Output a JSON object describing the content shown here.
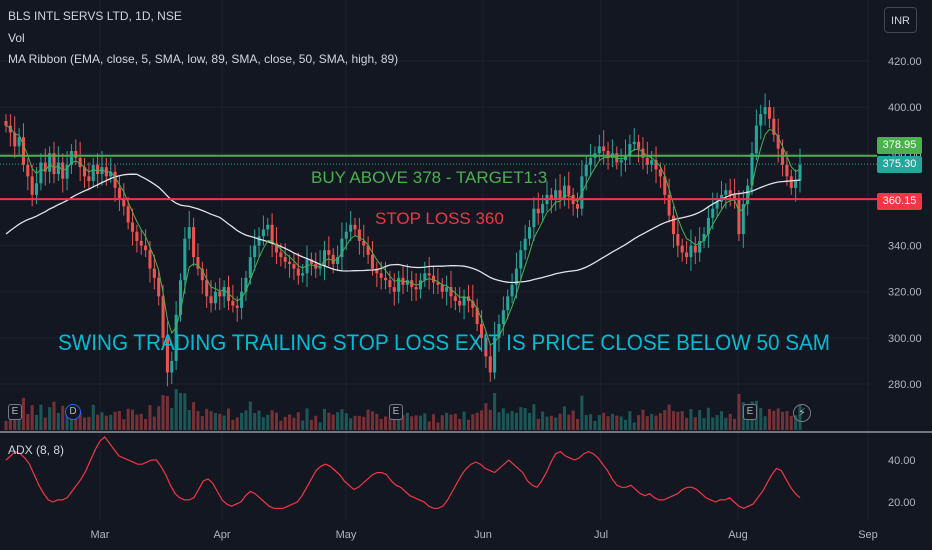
{
  "header": {
    "symbol": "BLS INTL SERVS LTD, 1D, NSE",
    "vol": "Vol",
    "ma_ribbon": "MA Ribbon (EMA, close, 5, SMA, low, 89, SMA, close, 50, SMA, high, 89)",
    "currency": "INR"
  },
  "events": {
    "e1": "E",
    "d1": "D",
    "e2": "E",
    "e3": "E"
  },
  "chart_data": {
    "type": "candlestick",
    "price_axis": {
      "ticks": [
        "420.00",
        "400.00",
        "380.00",
        "360.00",
        "340.00",
        "320.00",
        "300.00",
        "280.00"
      ],
      "range": [
        265,
        432
      ]
    },
    "x_labels": [
      "Mar",
      "Apr",
      "May",
      "Jun",
      "Jul",
      "Aug",
      "Sep"
    ],
    "price_tags": [
      {
        "text": "378.95",
        "color": "#4caf50"
      },
      {
        "text": "375.30",
        "color": "#26a69a"
      },
      {
        "text": "360.15",
        "color": "#f23645"
      }
    ],
    "horizontal_lines": [
      {
        "value": 378.95,
        "color": "#4caf50"
      },
      {
        "value": 360.15,
        "color": "#f23645"
      }
    ],
    "annotations": [
      {
        "text": "BUY ABOVE 378 - TARGET1:3",
        "color": "#4caf50"
      },
      {
        "text": "STOP LOSS 360",
        "color": "#f23645"
      },
      {
        "text": "SWING TRADING TRAILING STOP LOSS EXIT IS PRICE CLOSE BELOW 50 SAM",
        "color": "#00bcd4"
      }
    ],
    "close": [
      392,
      389,
      383,
      387,
      375,
      370,
      362,
      367,
      376,
      372,
      380,
      371,
      376,
      369,
      375,
      381,
      378,
      374,
      370,
      368,
      375,
      371,
      374,
      370,
      372,
      365,
      360,
      357,
      350,
      346,
      342,
      340,
      338,
      330,
      326,
      318,
      300,
      285,
      290,
      310,
      325,
      343,
      348,
      335,
      330,
      325,
      318,
      315,
      320,
      318,
      322,
      316,
      314,
      313,
      320,
      326,
      335,
      340,
      344,
      347,
      349,
      341,
      337,
      335,
      333,
      332,
      330,
      327,
      328,
      334,
      332,
      330,
      331,
      338,
      336,
      332,
      335,
      343,
      346,
      349,
      347,
      342,
      340,
      336,
      330,
      328,
      326,
      325,
      322,
      320,
      326,
      323,
      325,
      322,
      321,
      325,
      328,
      327,
      324,
      323,
      320,
      322,
      318,
      316,
      314,
      318,
      316,
      313,
      306,
      300,
      292,
      285,
      300,
      306,
      312,
      318,
      323,
      330,
      338,
      343,
      348,
      356,
      354,
      358,
      362,
      360,
      364,
      360,
      366,
      362,
      358,
      356,
      370,
      375,
      378,
      380,
      383,
      381,
      378,
      380,
      376,
      377,
      379,
      384,
      385,
      382,
      378,
      375,
      377,
      373,
      370,
      362,
      353,
      345,
      340,
      337,
      335,
      340,
      337,
      342,
      345,
      352,
      356,
      359,
      362,
      364,
      362,
      360,
      345,
      358,
      366,
      380,
      392,
      397,
      400,
      395,
      388,
      382,
      375,
      370,
      365,
      368,
      375
    ],
    "adx": {
      "name": "ADX (8, 8)",
      "ticks": [
        "40.00",
        "20.00"
      ],
      "values": [
        40,
        42,
        44,
        43,
        41,
        38,
        33,
        28,
        24,
        21,
        20,
        21,
        21,
        22,
        25,
        28,
        31,
        35,
        40,
        45,
        49,
        51,
        48,
        45,
        42,
        41,
        40,
        39,
        38,
        38,
        39,
        40,
        40,
        37,
        33,
        28,
        24,
        22,
        21,
        21,
        22,
        26,
        30,
        31,
        29,
        25,
        21,
        19,
        18,
        19,
        20,
        23,
        25,
        24,
        22,
        20,
        18,
        17,
        17,
        17,
        18,
        19,
        20,
        23,
        27,
        31,
        35,
        37,
        38,
        37,
        35,
        33,
        30,
        28,
        26,
        27,
        29,
        31,
        33,
        34,
        34,
        33,
        30,
        28,
        27,
        25,
        23,
        22,
        21,
        20,
        18,
        17,
        17,
        18,
        21,
        25,
        29,
        33,
        36,
        38,
        39,
        38,
        36,
        35,
        34,
        36,
        38,
        40,
        38,
        36,
        34,
        30,
        28,
        27,
        30,
        34,
        39,
        43,
        44,
        42,
        41,
        40,
        41,
        43,
        44,
        43,
        41,
        38,
        35,
        31,
        28,
        27,
        27,
        28,
        26,
        24,
        23,
        24,
        22,
        21,
        21,
        22,
        23,
        24,
        26,
        27,
        27,
        26,
        24,
        22,
        21,
        20,
        21,
        21,
        22,
        20,
        18,
        17,
        18,
        19,
        22,
        25,
        29,
        33,
        36,
        35,
        31,
        27,
        24,
        22
      ]
    }
  }
}
